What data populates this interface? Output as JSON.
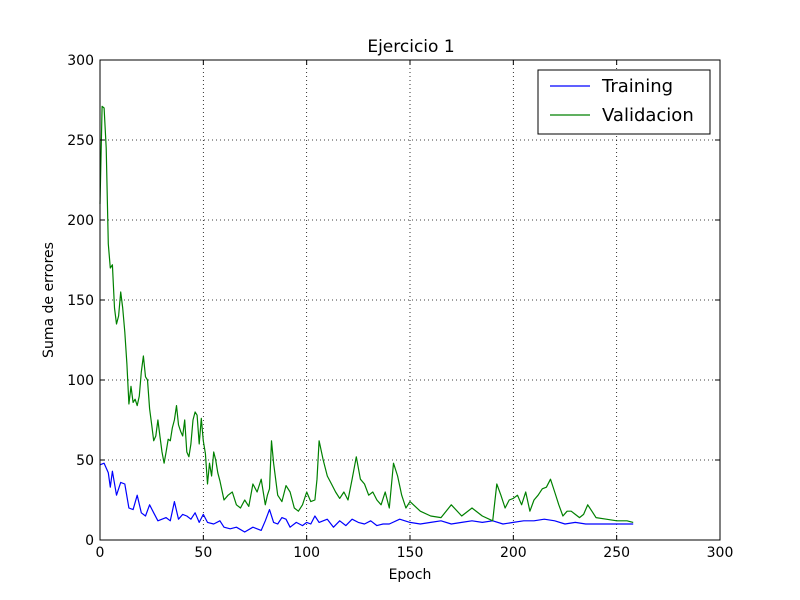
{
  "chart_data": {
    "type": "line",
    "title": "Ejercicio 1",
    "xlabel": "Epoch",
    "ylabel": "Suma de errores",
    "xlim": [
      0,
      300
    ],
    "ylim": [
      0,
      300
    ],
    "xticks": [
      "0",
      "50",
      "100",
      "150",
      "200",
      "250",
      "300"
    ],
    "yticks": [
      "0",
      "50",
      "100",
      "150",
      "200",
      "250",
      "300"
    ],
    "grid": true,
    "legend_position": "top-right",
    "series": [
      {
        "name": "Training",
        "color": "#0000ff",
        "x": [
          0,
          2,
          4,
          5,
          6,
          8,
          10,
          12,
          14,
          16,
          18,
          20,
          22,
          24,
          26,
          28,
          30,
          32,
          34,
          36,
          38,
          40,
          42,
          44,
          46,
          48,
          50,
          52,
          55,
          58,
          60,
          63,
          66,
          70,
          74,
          78,
          80,
          82,
          84,
          86,
          88,
          90,
          92,
          95,
          98,
          100,
          102,
          104,
          106,
          108,
          110,
          113,
          116,
          119,
          122,
          125,
          128,
          131,
          134,
          137,
          140,
          145,
          150,
          155,
          160,
          165,
          170,
          175,
          180,
          185,
          190,
          195,
          200,
          205,
          210,
          215,
          220,
          225,
          230,
          235,
          240,
          245,
          250,
          255,
          258
        ],
        "y": [
          47,
          48,
          42,
          33,
          43,
          28,
          36,
          35,
          20,
          19,
          28,
          17,
          15,
          22,
          17,
          12,
          13,
          14,
          12,
          24,
          13,
          16,
          15,
          13,
          17,
          11,
          16,
          11,
          10,
          12,
          8,
          7,
          8,
          5,
          8,
          6,
          12,
          19,
          11,
          10,
          14,
          13,
          8,
          11,
          9,
          11,
          10,
          15,
          11,
          12,
          13,
          8,
          12,
          9,
          13,
          11,
          10,
          12,
          9,
          10,
          10,
          13,
          11,
          10,
          11,
          12,
          10,
          11,
          12,
          11,
          12,
          10,
          11,
          12,
          12,
          13,
          12,
          10,
          11,
          10,
          10,
          10,
          10,
          10,
          10
        ]
      },
      {
        "name": "Validacion",
        "color": "#008000",
        "x": [
          0,
          1,
          2,
          3,
          4,
          5,
          6,
          7,
          8,
          9,
          10,
          11,
          12,
          13,
          14,
          15,
          16,
          17,
          18,
          19,
          20,
          21,
          22,
          23,
          24,
          25,
          26,
          27,
          28,
          29,
          30,
          31,
          32,
          33,
          34,
          35,
          36,
          37,
          38,
          39,
          40,
          41,
          42,
          43,
          44,
          45,
          46,
          47,
          48,
          49,
          50,
          51,
          52,
          53,
          54,
          55,
          56,
          57,
          58,
          60,
          62,
          64,
          66,
          68,
          70,
          72,
          74,
          76,
          78,
          80,
          81,
          82,
          83,
          84,
          86,
          88,
          90,
          92,
          94,
          96,
          98,
          100,
          102,
          104,
          105,
          106,
          108,
          110,
          112,
          114,
          116,
          118,
          120,
          122,
          124,
          126,
          128,
          130,
          132,
          134,
          136,
          138,
          140,
          142,
          144,
          146,
          148,
          150,
          155,
          160,
          165,
          170,
          175,
          180,
          185,
          190,
          192,
          194,
          196,
          198,
          200,
          202,
          204,
          206,
          208,
          210,
          212,
          214,
          216,
          218,
          220,
          222,
          224,
          226,
          228,
          230,
          232,
          234,
          236,
          238,
          240,
          245,
          250,
          255,
          258
        ],
        "y": [
          210,
          271,
          270,
          245,
          185,
          170,
          172,
          145,
          135,
          140,
          155,
          145,
          130,
          110,
          85,
          96,
          86,
          88,
          84,
          90,
          105,
          115,
          102,
          100,
          82,
          72,
          62,
          65,
          75,
          65,
          55,
          48,
          55,
          63,
          62,
          70,
          75,
          84,
          72,
          68,
          65,
          75,
          55,
          52,
          60,
          75,
          80,
          78,
          60,
          76,
          62,
          54,
          35,
          48,
          40,
          55,
          50,
          42,
          37,
          25,
          28,
          30,
          22,
          20,
          25,
          21,
          35,
          30,
          38,
          22,
          28,
          32,
          62,
          48,
          28,
          24,
          34,
          30,
          20,
          18,
          22,
          30,
          24,
          25,
          38,
          62,
          50,
          40,
          35,
          30,
          26,
          30,
          25,
          38,
          52,
          38,
          35,
          28,
          30,
          25,
          22,
          30,
          20,
          48,
          40,
          28,
          20,
          24,
          18,
          15,
          14,
          22,
          15,
          20,
          15,
          12,
          35,
          28,
          20,
          25,
          26,
          28,
          22,
          30,
          18,
          25,
          28,
          32,
          33,
          38,
          30,
          22,
          15,
          18,
          18,
          16,
          14,
          16,
          22,
          18,
          14,
          13,
          12,
          12,
          11
        ]
      }
    ]
  }
}
